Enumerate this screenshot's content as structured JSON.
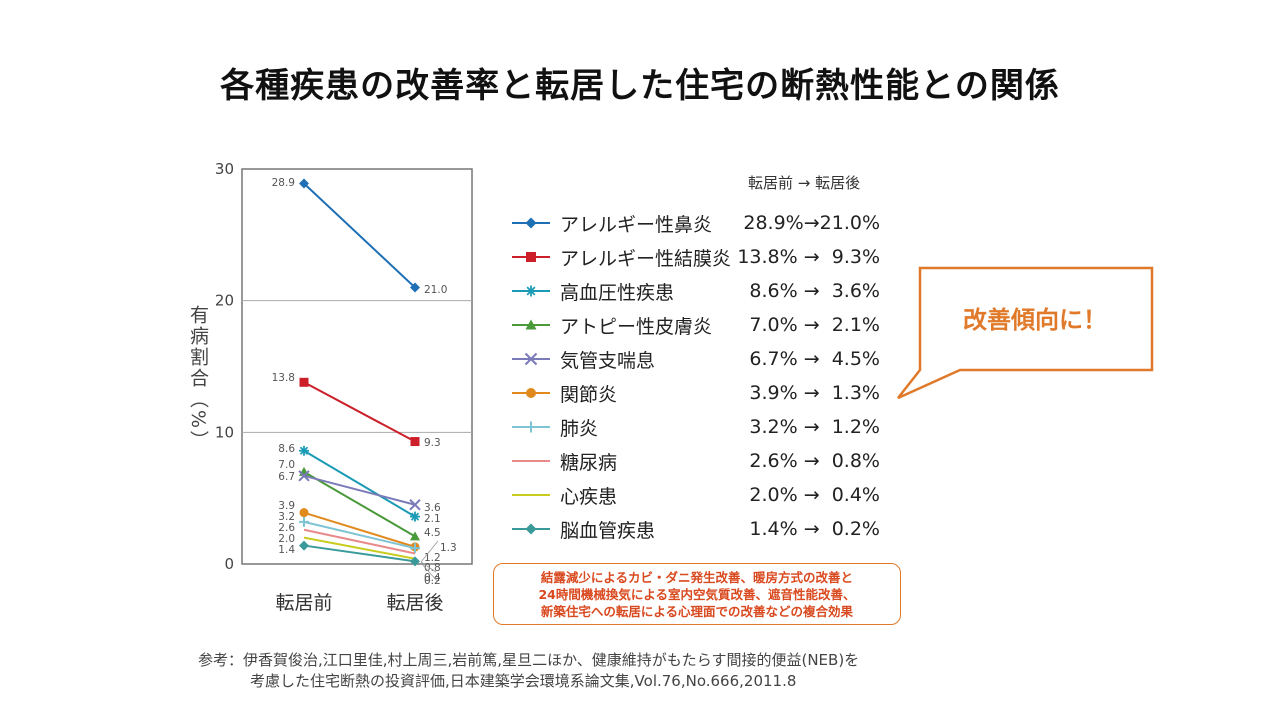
{
  "slide": {
    "title": "各種疾患の改善率と転居した住宅の断熱性能との関係"
  },
  "legend_header": "転居前 → 転居後",
  "callout": {
    "text": "改善傾向に！"
  },
  "effect_box": {
    "lines": [
      "結露減少によるカビ・ダニ発生改善、暖房方式の改善と",
      "24時間機械換気による室内空気質改善、遮音性能改善、",
      "新築住宅への転居による心理面での改善などの複合効果"
    ]
  },
  "reference": {
    "line1": "参考：伊香賀俊治,江口里佳,村上周三,岩前篤,星旦二ほか、健康維持がもたらす間接的便益(NEB)を",
    "line2": "考慮した住宅断熱の投資評価,日本建築学会環境系論文集,Vol.76,No.666,2011.8"
  },
  "chart_data": {
    "type": "line",
    "title": "",
    "xlabel": "",
    "ylabel": "有病割合（%）",
    "ylim": [
      0,
      30
    ],
    "yticks": [
      "0",
      "10",
      "20",
      "30"
    ],
    "categories": [
      "転居前",
      "転居後"
    ],
    "grid": true,
    "legend_position": "right",
    "series": [
      {
        "name": "アレルギー性鼻炎",
        "values": [
          28.9,
          21.0
        ],
        "before_label": "28.9",
        "after_label": "21.0",
        "legend_values": "28.9%→21.0%",
        "color": "#1f6fb5",
        "marker": "diamond"
      },
      {
        "name": "アレルギー性結膜炎",
        "values": [
          13.8,
          9.3
        ],
        "before_label": "13.8",
        "after_label": "9.3",
        "legend_values": "13.8% →  9.3%",
        "color": "#cc1f2a",
        "marker": "square"
      },
      {
        "name": "高血圧性疾患",
        "values": [
          8.6,
          3.6
        ],
        "before_label": "8.6",
        "after_label": "3.6",
        "legend_values": "8.6% →  3.6%",
        "color": "#1b9bb5",
        "marker": "asterisk"
      },
      {
        "name": "アトピー性皮膚炎",
        "values": [
          7.0,
          2.1
        ],
        "before_label": "7.0",
        "after_label": "2.1",
        "legend_values": "7.0% →  2.1%",
        "color": "#4a9a3a",
        "marker": "triangle"
      },
      {
        "name": "気管支喘息",
        "values": [
          6.7,
          4.5
        ],
        "before_label": "6.7",
        "after_label": "4.5",
        "legend_values": "6.7% →  4.5%",
        "color": "#7a7ab8",
        "marker": "x"
      },
      {
        "name": "関節炎",
        "values": [
          3.9,
          1.3
        ],
        "before_label": "3.9",
        "after_label": "1.3",
        "legend_values": "3.9% →  1.3%",
        "color": "#e08a1e",
        "marker": "circle"
      },
      {
        "name": "肺炎",
        "values": [
          3.2,
          1.2
        ],
        "before_label": "3.2",
        "after_label": "1.2",
        "legend_values": "3.2% →  1.2%",
        "color": "#7ec4d4",
        "marker": "plus"
      },
      {
        "name": "糖尿病",
        "values": [
          2.6,
          0.8
        ],
        "before_label": "2.6",
        "after_label": "0.8",
        "legend_values": "2.6% →  0.8%",
        "color": "#e88a8a",
        "marker": "none"
      },
      {
        "name": "心疾患",
        "values": [
          2.0,
          0.4
        ],
        "before_label": "2.0",
        "after_label": "0.4",
        "legend_values": "2.0% →  0.4%",
        "color": "#c8cc1e",
        "marker": "none"
      },
      {
        "name": "脳血管疾患",
        "values": [
          1.4,
          0.2
        ],
        "before_label": "1.4",
        "after_label": "0.2",
        "legend_values": "1.4% →  0.2%",
        "color": "#3a9a9a",
        "marker": "diamond"
      }
    ]
  }
}
